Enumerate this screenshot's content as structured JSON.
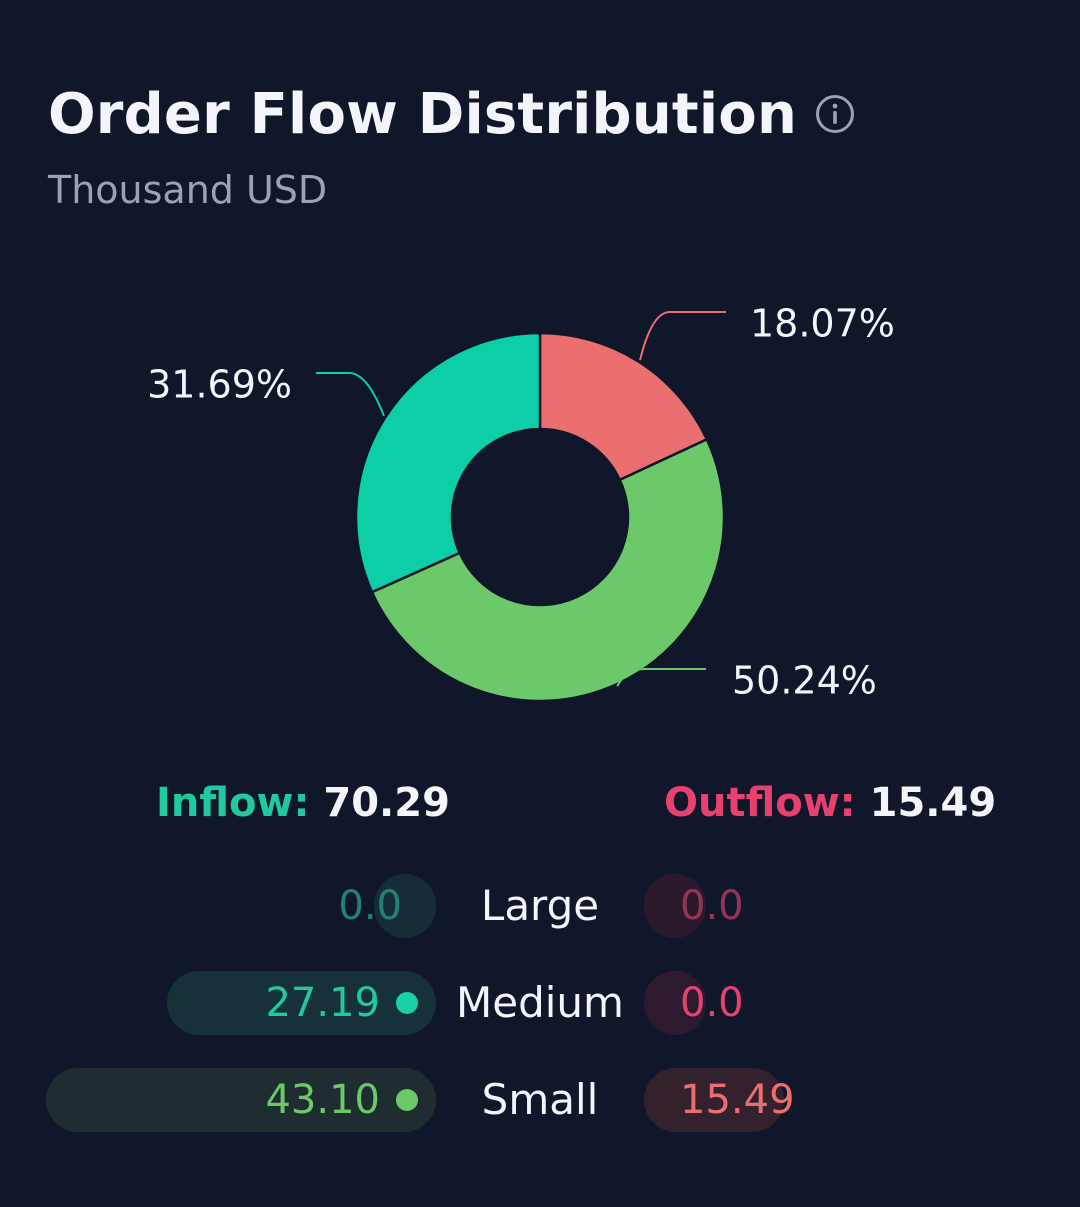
{
  "header": {
    "title": "Order Flow Distribution",
    "subtitle": "Thousand USD",
    "info_icon": "info-circle-icon"
  },
  "chart_data": {
    "type": "pie",
    "variant": "donut",
    "slices": [
      {
        "value": 18.07,
        "label": "18.07%",
        "color": "#ec6f6f"
      },
      {
        "value": 50.24,
        "label": "50.24%",
        "color": "#6cc96a"
      },
      {
        "value": 31.69,
        "label": "31.69%",
        "color": "#0ccfa8"
      }
    ]
  },
  "totals": {
    "inflow_label": "Inflow:",
    "inflow_value": "70.29",
    "outflow_label": "Outflow:",
    "outflow_value": "15.49"
  },
  "rows": [
    {
      "category": "Large",
      "inflow": "0.0",
      "inflow_amount": 0.0,
      "outflow": "0.0",
      "outflow_amount": 0.0,
      "inflow_color": "#1f8378",
      "inflow_dot": "#117a70",
      "inflow_bg": "#172d36",
      "outflow_color": "#953553",
      "outflow_dot": "#a8304f",
      "outflow_bg": "#2b1a2c"
    },
    {
      "category": "Medium",
      "inflow": "27.19",
      "inflow_amount": 27.19,
      "outflow": "0.0",
      "outflow_amount": 0.0,
      "inflow_color": "#20c9a0",
      "inflow_dot": "#1bd0a6",
      "inflow_bg": "#163137",
      "outflow_color": "#e8416f",
      "outflow_dot": "#ef3c6e",
      "outflow_bg": "#2e1a2e"
    },
    {
      "category": "Small",
      "inflow": "43.10",
      "inflow_amount": 43.1,
      "outflow": "15.49",
      "outflow_amount": 15.49,
      "inflow_color": "#6cc96a",
      "inflow_dot": "#6cc96a",
      "inflow_bg": "#1f2d31",
      "outflow_color": "#ec6f6f",
      "outflow_dot": "#ec6f6f",
      "outflow_bg": "#33222d"
    }
  ]
}
